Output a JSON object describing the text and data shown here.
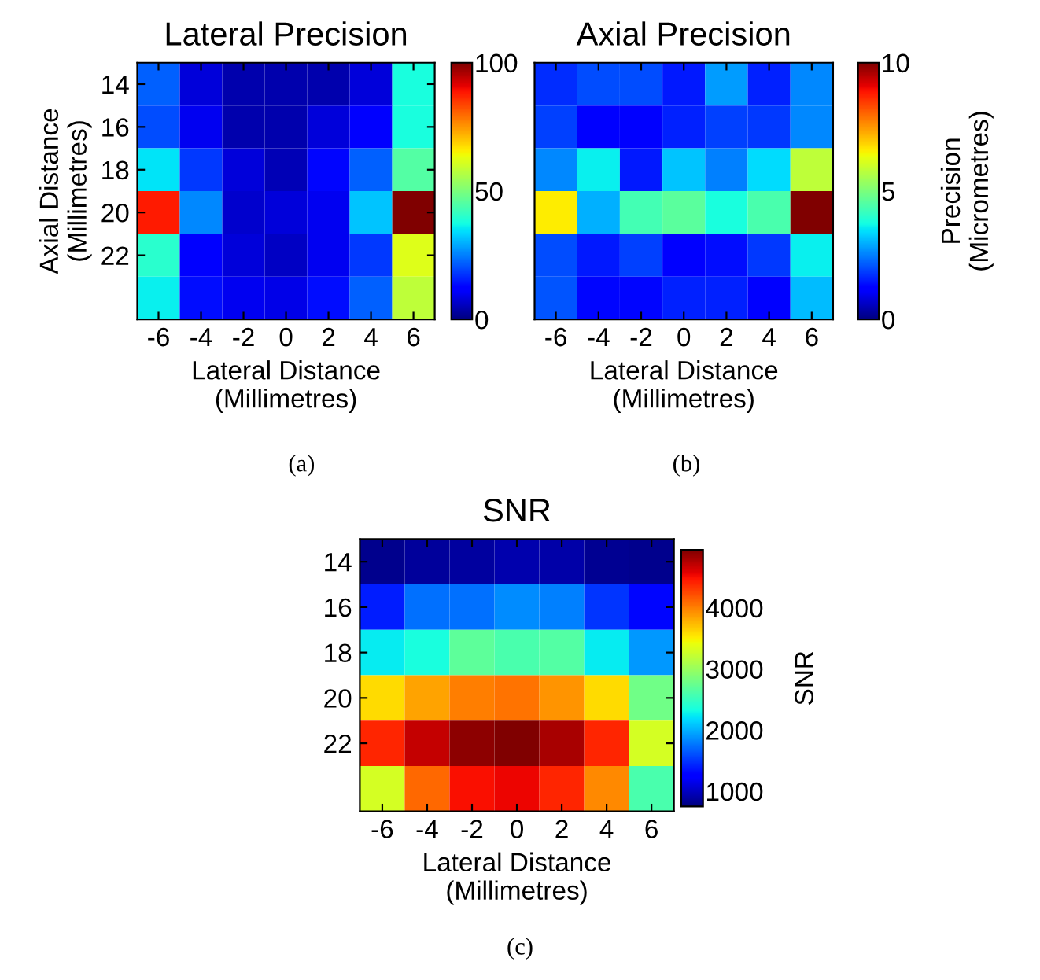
{
  "chart_data": [
    {
      "type": "heatmap",
      "title": "Lateral Precision",
      "xlabel": "Lateral Distance\n(Millimetres)",
      "ylabel": "Axial Distance\n(Millimetres)",
      "categories": [
        "-6",
        "-4",
        "-2",
        "0",
        "2",
        "4",
        "6"
      ],
      "y_categories": [
        "14",
        "16",
        "18",
        "20",
        "22",
        null
      ],
      "clim": [
        0,
        100
      ],
      "cticks": [
        0,
        50,
        100
      ],
      "annotations": [
        "(a)"
      ],
      "cells": [
        [
          22,
          8,
          4,
          4,
          4,
          8,
          38
        ],
        [
          20,
          10,
          4,
          4,
          8,
          12,
          38
        ],
        [
          35,
          18,
          8,
          5,
          13,
          22,
          45
        ],
        [
          88,
          26,
          7,
          8,
          10,
          32,
          100
        ],
        [
          40,
          12,
          8,
          6,
          10,
          18,
          62
        ],
        [
          36,
          14,
          10,
          9,
          14,
          22,
          58
        ]
      ]
    },
    {
      "type": "heatmap",
      "title": "Axial Precision",
      "xlabel": "Lateral Distance\n(Millimetres)",
      "clabel": "Precision\n(Micrometres)",
      "categories": [
        "-6",
        "-4",
        "-2",
        "0",
        "2",
        "4",
        "6"
      ],
      "y_categories": [
        null,
        null,
        null,
        null,
        null,
        null
      ],
      "tick_labels": "x",
      "clim": [
        0,
        10
      ],
      "cticks": [
        0,
        5,
        10
      ],
      "annotations": [
        "(b)"
      ],
      "cells": [
        [
          1.7,
          2.0,
          2.0,
          1.5,
          2.8,
          1.6,
          2.6
        ],
        [
          1.9,
          1.2,
          1.2,
          1.6,
          1.9,
          1.8,
          2.6
        ],
        [
          2.6,
          3.6,
          1.5,
          3.2,
          2.5,
          3.4,
          5.8
        ],
        [
          6.6,
          3.0,
          4.3,
          4.6,
          3.8,
          4.4,
          10
        ],
        [
          2.0,
          1.5,
          1.9,
          1.1,
          1.4,
          1.8,
          3.6
        ],
        [
          2.1,
          1.3,
          1.3,
          1.6,
          1.6,
          1.2,
          3.1
        ]
      ]
    },
    {
      "type": "heatmap",
      "title": "SNR",
      "xlabel": "Lateral Distance\n(Millimetres)",
      "clabel": "SNR",
      "categories": [
        "-6",
        "-4",
        "-2",
        "0",
        "2",
        "4",
        "6"
      ],
      "y_categories": [
        "14",
        "16",
        "18",
        "20",
        "22",
        null
      ],
      "clim": [
        750,
        4950
      ],
      "cticks": [
        1000,
        2000,
        3000,
        4000
      ],
      "annotations": [
        "(c)"
      ],
      "cells": [
        [
          800,
          850,
          880,
          920,
          900,
          820,
          800
        ],
        [
          1400,
          1750,
          1750,
          1850,
          1800,
          1500,
          1300
        ],
        [
          2250,
          2350,
          2700,
          2600,
          2650,
          2250,
          1900
        ],
        [
          3600,
          3850,
          4000,
          4050,
          3900,
          3600,
          2800
        ],
        [
          4400,
          4700,
          4900,
          4950,
          4800,
          4400,
          3300
        ],
        [
          3300,
          4100,
          4500,
          4550,
          4400,
          3950,
          2600
        ]
      ]
    }
  ]
}
